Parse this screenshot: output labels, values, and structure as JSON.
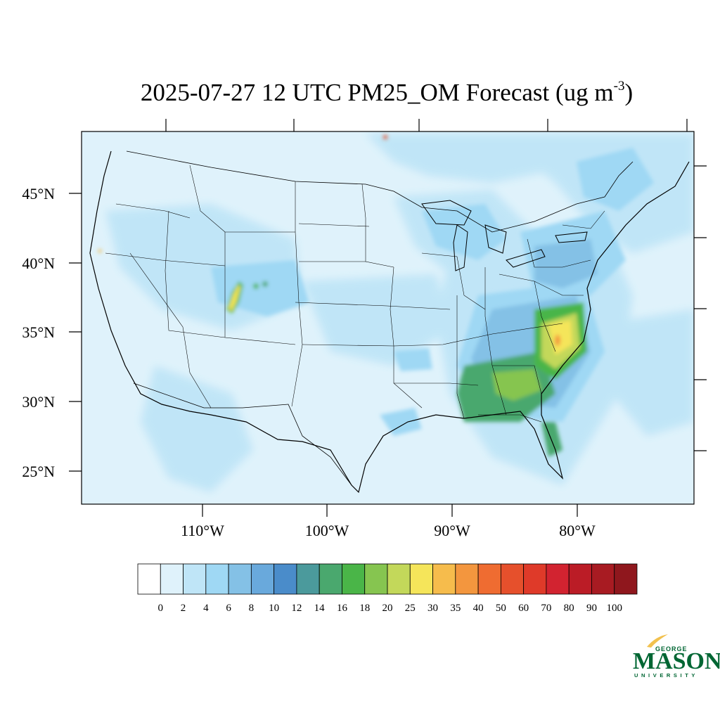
{
  "title": {
    "main": "2025-07-27 12 UTC PM25_OM Forecast (ug m",
    "superscript": "-3",
    "close": ")"
  },
  "map": {
    "projection": "lambert-conformal",
    "domain": "CONUS",
    "variable": "PM25_OM",
    "lat_labels": [
      "45°N",
      "40°N",
      "35°N",
      "30°N",
      "25°N"
    ],
    "lon_labels": [
      "110°W",
      "100°W",
      "90°W",
      "80°W"
    ],
    "background_color": "#dff2fb",
    "boundary_color": "#000000"
  },
  "colorbar": {
    "levels": [
      "0",
      "2",
      "4",
      "6",
      "8",
      "10",
      "12",
      "14",
      "16",
      "18",
      "20",
      "25",
      "30",
      "35",
      "40",
      "50",
      "60",
      "70",
      "80",
      "90",
      "100"
    ],
    "colors": [
      "#ffffff",
      "#dff2fb",
      "#bfe5f7",
      "#9fd8f4",
      "#84c1e6",
      "#69a9dc",
      "#4a8cca",
      "#4b9a9c",
      "#4aa86e",
      "#4ab548",
      "#86c550",
      "#c3d85a",
      "#f5e55a",
      "#f6bc4c",
      "#f3963e",
      "#ef6c31",
      "#e6502c",
      "#df3a29",
      "#d22330",
      "#bb1c26",
      "#a81b22",
      "#8f171d"
    ]
  },
  "hotspots": [
    {
      "region": "Carolinas",
      "max_bin": "35-40"
    },
    {
      "region": "Colorado/Utah",
      "max_bin": "25-30"
    },
    {
      "region": "Georgia",
      "max_bin": "20-25"
    }
  ],
  "logo": {
    "line1": "GEORGE",
    "line2": "MASON",
    "line3": "UNIVERSITY",
    "color": "#006633",
    "accent": "#f2c14e"
  }
}
